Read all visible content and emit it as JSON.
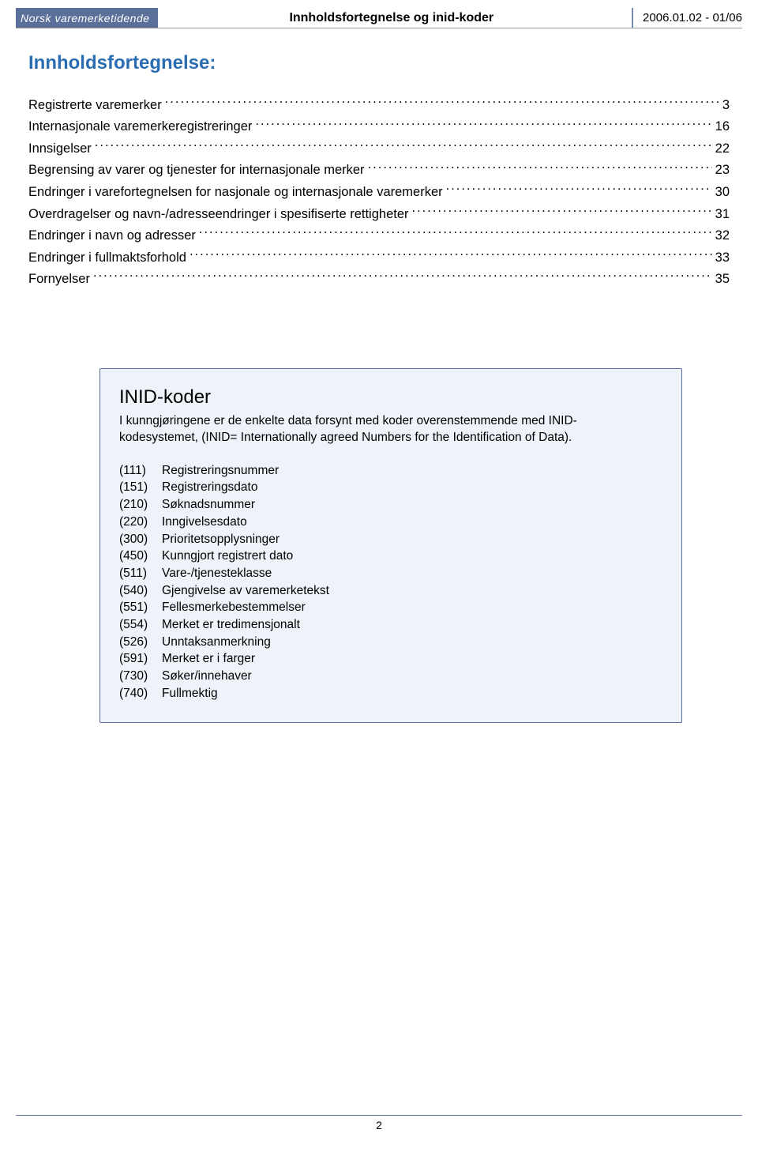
{
  "header": {
    "badge": "Norsk varemerketidende",
    "center": "Innholdsfortegnelse og inid-koder",
    "right": "2006.01.02 - 01/06"
  },
  "title": "Innholdsfortegnelse:",
  "toc": [
    {
      "label": "Registrerte varemerker",
      "page": "3"
    },
    {
      "label": "Internasjonale varemerkeregistreringer",
      "page": "16"
    },
    {
      "label": "Innsigelser",
      "page": "22"
    },
    {
      "label": "Begrensing av varer og tjenester for internasjonale merker",
      "page": "23"
    },
    {
      "label": "Endringer i varefortegnelsen for nasjonale og internasjonale varemerker",
      "page": "30"
    },
    {
      "label": "Overdragelser og navn-/adresseendringer i spesifiserte rettigheter",
      "page": "31"
    },
    {
      "label": "Endringer i navn og adresser",
      "page": "32"
    },
    {
      "label": "Endringer i fullmaktsforhold",
      "page": "33"
    },
    {
      "label": "Fornyelser",
      "page": "35"
    }
  ],
  "inid": {
    "title": "INID-koder",
    "intro": "I kunngjøringene er de enkelte data forsynt med koder overenstemmende med INID-kodesystemet, (INID= Internationally agreed Numbers for the Identification of Data).",
    "items": [
      {
        "code": "(111)",
        "desc": "Registreringsnummer"
      },
      {
        "code": "(151)",
        "desc": "Registreringsdato"
      },
      {
        "code": "(210)",
        "desc": "Søknadsnummer"
      },
      {
        "code": "(220)",
        "desc": "Inngivelsesdato"
      },
      {
        "code": "(300)",
        "desc": "Prioritetsopplysninger"
      },
      {
        "code": "(450)",
        "desc": "Kunngjort registrert dato"
      },
      {
        "code": "(511)",
        "desc": "Vare-/tjenesteklasse"
      },
      {
        "code": "(540)",
        "desc": "Gjengivelse av varemerketekst"
      },
      {
        "code": "(551)",
        "desc": "Fellesmerkebestemmelser"
      },
      {
        "code": "(554)",
        "desc": "Merket er tredimensjonalt"
      },
      {
        "code": "(526)",
        "desc": "Unntaksanmerkning"
      },
      {
        "code": "(591)",
        "desc": "Merket er i farger"
      },
      {
        "code": "(730)",
        "desc": "Søker/innehaver"
      },
      {
        "code": "(740)",
        "desc": "Fullmektig"
      }
    ]
  },
  "footer": {
    "pagenum": "2"
  },
  "colors": {
    "badge_bg": "#5a6f99",
    "badge_fg": "#ffffff",
    "title_color": "#2a6db3",
    "box_bg": "#eef2f9",
    "box_border": "#5a6f99",
    "text": "#000000"
  }
}
